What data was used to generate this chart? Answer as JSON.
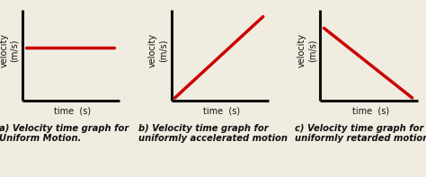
{
  "background_color": "#f0ece0",
  "line_color": "#cc0000",
  "axis_color": "#111111",
  "line_width": 2.5,
  "axis_linewidth": 2.2,
  "graphs": [
    {
      "title_line1": "a) Velocity time graph for",
      "title_line2": "Uniform Motion.",
      "x": [
        0.18,
        0.92
      ],
      "y": [
        0.58,
        0.58
      ],
      "ylabel_line1": "velocity",
      "ylabel_line2": "(m/s)",
      "xlabel": "time  (s)"
    },
    {
      "title_line1": "b) Velocity time graph for",
      "title_line2": "uniformly accelerated motion",
      "x": [
        0.18,
        0.92
      ],
      "y": [
        0.05,
        0.9
      ],
      "ylabel_line1": "velocity",
      "ylabel_line2": "(m/s)",
      "xlabel": "time  (s)"
    },
    {
      "title_line1": "c) Velocity time graph for",
      "title_line2": "uniformly retarded motion",
      "x": [
        0.18,
        0.92
      ],
      "y": [
        0.78,
        0.05
      ],
      "ylabel_line1": "velocity",
      "ylabel_line2": "(m/s)",
      "xlabel": "time  (s)"
    }
  ],
  "title_fontsize": 7.2,
  "label_fontsize": 7.0,
  "ylabel_fontsize": 7.0,
  "title_fontstyle": "italic",
  "title_fontweight": "bold"
}
